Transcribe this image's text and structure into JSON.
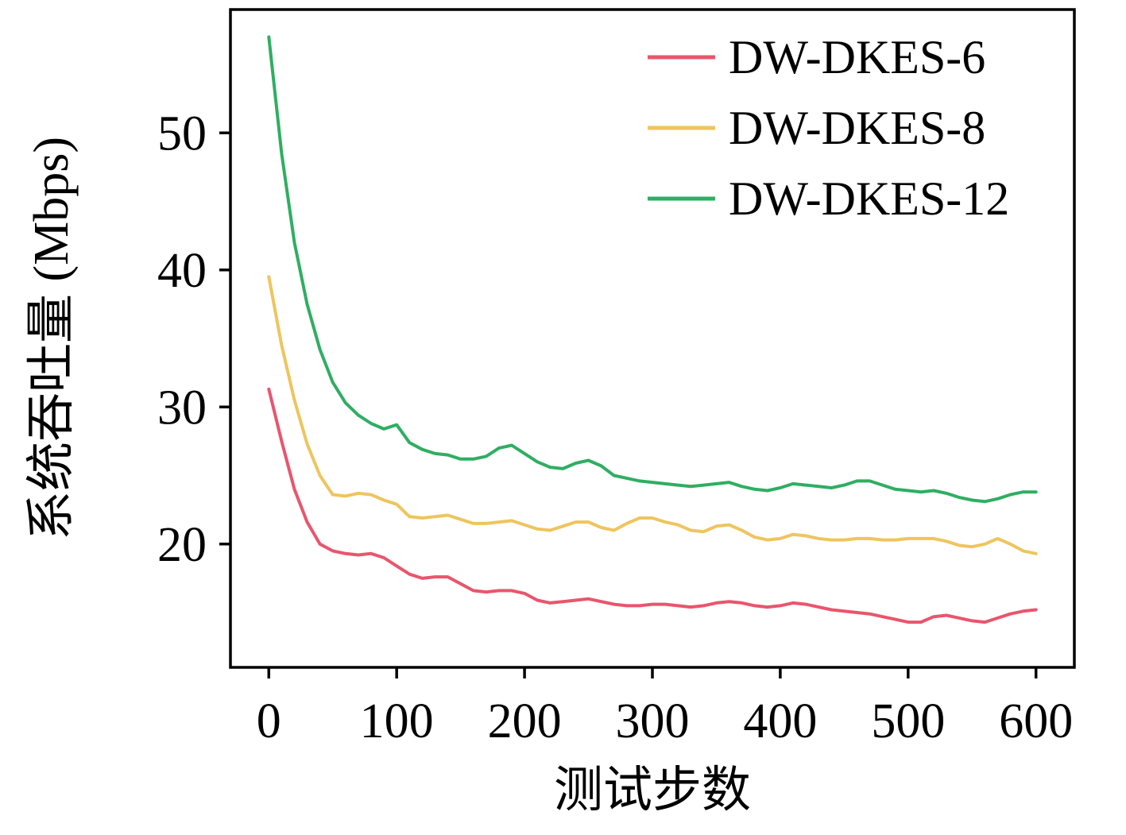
{
  "chart_data": {
    "type": "line",
    "title": "",
    "xlabel": "测试步数",
    "ylabel": "系统吞吐量 (Mbps)",
    "xlim": [
      -30,
      630
    ],
    "ylim": [
      11,
      59
    ],
    "xticks": [
      0,
      100,
      200,
      300,
      400,
      500,
      600
    ],
    "yticks": [
      20,
      30,
      40,
      50
    ],
    "grid": false,
    "legend_position": "top-right",
    "x": [
      0,
      10,
      20,
      30,
      40,
      50,
      60,
      70,
      80,
      90,
      100,
      110,
      120,
      130,
      140,
      150,
      160,
      170,
      180,
      190,
      200,
      210,
      220,
      230,
      240,
      250,
      260,
      270,
      280,
      290,
      300,
      310,
      320,
      330,
      340,
      350,
      360,
      370,
      380,
      390,
      400,
      410,
      420,
      430,
      440,
      450,
      460,
      470,
      480,
      490,
      500,
      510,
      520,
      530,
      540,
      550,
      560,
      570,
      580,
      590,
      600
    ],
    "series": [
      {
        "name": "DW-DKES-6",
        "color": "#e8566d",
        "values": [
          31.3,
          27.5,
          24.0,
          21.6,
          20.0,
          19.5,
          19.3,
          19.2,
          19.3,
          19.0,
          18.4,
          17.8,
          17.5,
          17.6,
          17.6,
          17.1,
          16.6,
          16.5,
          16.6,
          16.6,
          16.4,
          15.9,
          15.7,
          15.8,
          15.9,
          16.0,
          15.8,
          15.6,
          15.5,
          15.5,
          15.6,
          15.6,
          15.5,
          15.4,
          15.5,
          15.7,
          15.8,
          15.7,
          15.5,
          15.4,
          15.5,
          15.7,
          15.6,
          15.4,
          15.2,
          15.1,
          15.0,
          14.9,
          14.7,
          14.5,
          14.3,
          14.3,
          14.7,
          14.8,
          14.6,
          14.4,
          14.3,
          14.6,
          14.9,
          15.1,
          15.2
        ]
      },
      {
        "name": "DW-DKES-8",
        "color": "#eec55e",
        "values": [
          39.5,
          34.5,
          30.5,
          27.3,
          25.0,
          23.6,
          23.5,
          23.7,
          23.6,
          23.2,
          22.9,
          22.0,
          21.9,
          22.0,
          22.1,
          21.8,
          21.5,
          21.5,
          21.6,
          21.7,
          21.4,
          21.1,
          21.0,
          21.3,
          21.6,
          21.6,
          21.2,
          21.0,
          21.5,
          21.9,
          21.9,
          21.6,
          21.4,
          21.0,
          20.9,
          21.3,
          21.4,
          21.0,
          20.5,
          20.3,
          20.4,
          20.7,
          20.6,
          20.4,
          20.3,
          20.3,
          20.4,
          20.4,
          20.3,
          20.3,
          20.4,
          20.4,
          20.4,
          20.2,
          19.9,
          19.8,
          20.0,
          20.4,
          20.0,
          19.5,
          19.3
        ]
      },
      {
        "name": "DW-DKES-12",
        "color": "#2fae62",
        "values": [
          57.0,
          48.5,
          42.0,
          37.5,
          34.2,
          31.8,
          30.3,
          29.4,
          28.8,
          28.4,
          28.7,
          27.4,
          26.9,
          26.6,
          26.5,
          26.2,
          26.2,
          26.4,
          27.0,
          27.2,
          26.6,
          26.0,
          25.6,
          25.5,
          25.9,
          26.1,
          25.7,
          25.0,
          24.8,
          24.6,
          24.5,
          24.4,
          24.3,
          24.2,
          24.3,
          24.4,
          24.5,
          24.2,
          24.0,
          23.9,
          24.1,
          24.4,
          24.3,
          24.2,
          24.1,
          24.3,
          24.6,
          24.6,
          24.3,
          24.0,
          23.9,
          23.8,
          23.9,
          23.7,
          23.4,
          23.2,
          23.1,
          23.3,
          23.6,
          23.8,
          23.8
        ]
      }
    ]
  }
}
